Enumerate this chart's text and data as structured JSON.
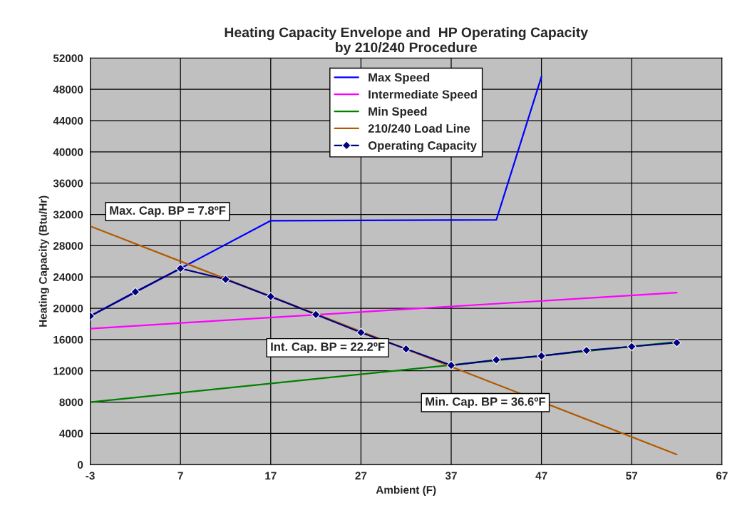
{
  "chart_data": {
    "type": "line",
    "title": "Heating Capacity Envelope and  HP Operating Capacity\nby 210/240 Procedure",
    "xlabel": "Ambient (F)",
    "ylabel": "Heating Capacity (Btu/Hr)",
    "xlim": [
      -3,
      67
    ],
    "xticks": [
      -3,
      7,
      17,
      27,
      37,
      47,
      57,
      67
    ],
    "ylim": [
      0,
      52000
    ],
    "yticks": [
      0,
      4000,
      8000,
      12000,
      16000,
      20000,
      24000,
      28000,
      32000,
      36000,
      40000,
      44000,
      48000,
      52000
    ],
    "grid": true,
    "legend": "top",
    "marker": "none",
    "series": [
      {
        "name": "Max Speed",
        "color": "#0000ff",
        "x": [
          -3,
          17,
          42,
          47
        ],
        "values": [
          19000,
          31200,
          31300,
          49600
        ]
      },
      {
        "name": "Intermediate Speed",
        "color": "#ff00ff",
        "x": [
          -3,
          62
        ],
        "values": [
          17400,
          22000
        ]
      },
      {
        "name": "Min Speed",
        "color": "#008000",
        "x": [
          -3,
          62
        ],
        "values": [
          8000,
          15700
        ]
      },
      {
        "name": "210/240 Load Line",
        "color": "#b35900",
        "x": [
          -3,
          62
        ],
        "values": [
          30500,
          1300
        ]
      },
      {
        "name": "Operating Capacity",
        "color": "#000080",
        "marker": "diamond",
        "x": [
          -3,
          2,
          7,
          12,
          17,
          22,
          27,
          32,
          37,
          42,
          47,
          52,
          57,
          62
        ],
        "values": [
          19000,
          22100,
          25100,
          23700,
          21500,
          19200,
          16900,
          14800,
          12700,
          13400,
          13900,
          14600,
          15100,
          15600
        ]
      }
    ],
    "annotations": [
      "Max. Cap. BP = 7.8ºF",
      "Int. Cap. BP = 22.2ºF",
      "Min. Cap. BP = 36.6ºF"
    ]
  }
}
